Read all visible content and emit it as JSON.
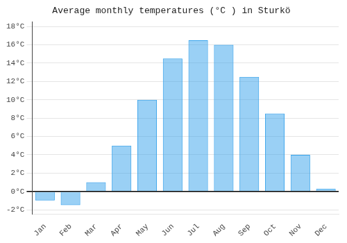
{
  "chart_data": {
    "type": "bar",
    "title": "Average monthly temperatures (°C ) in Sturkö",
    "categories": [
      "Jan",
      "Feb",
      "Mar",
      "Apr",
      "May",
      "Jun",
      "Jul",
      "Aug",
      "Sep",
      "Oct",
      "Nov",
      "Dec"
    ],
    "values": [
      -1.0,
      -1.5,
      1.0,
      5.0,
      10.0,
      14.5,
      16.5,
      16.0,
      12.5,
      8.5,
      4.0,
      0.3
    ],
    "ylim": [
      -2.5,
      18.5
    ],
    "yticks": [
      {
        "value": -2,
        "label": "-2°C"
      },
      {
        "value": 0,
        "label": "0°C"
      },
      {
        "value": 2,
        "label": "2°C"
      },
      {
        "value": 4,
        "label": "4°C"
      },
      {
        "value": 6,
        "label": "6°C"
      },
      {
        "value": 8,
        "label": "8°C"
      },
      {
        "value": 10,
        "label": "10°C"
      },
      {
        "value": 12,
        "label": "12°C"
      },
      {
        "value": 14,
        "label": "14°C"
      },
      {
        "value": 16,
        "label": "16°C"
      },
      {
        "value": 18,
        "label": "18°C"
      }
    ],
    "grid": true
  }
}
